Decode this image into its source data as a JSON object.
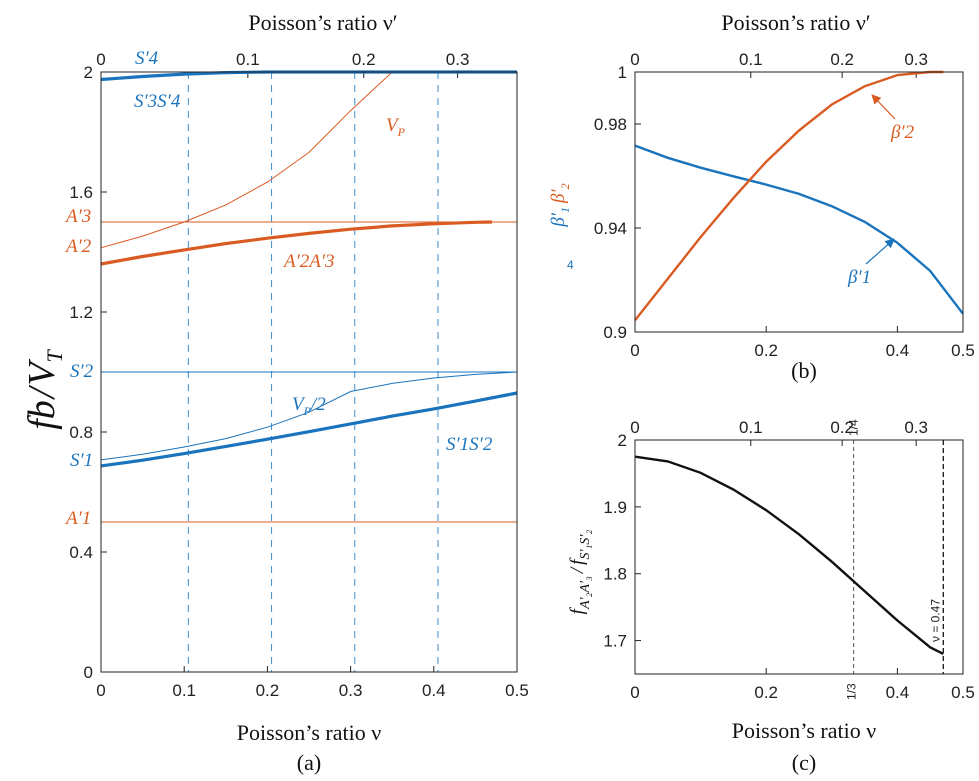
{
  "colors": {
    "blue": "#1a73bd",
    "orange": "#d95b22",
    "black": "#111111",
    "dash_blue": "#3b8fd1"
  },
  "chart_data": [
    {
      "type": "line",
      "id": "a",
      "panel_label": "(a)",
      "xlabel": "Poisson’s ratio ν",
      "top_xlabel": "Poisson’s ratio ν′",
      "ylabel_main": "fb",
      "ylabel_den": "V",
      "ylabel_sub": "T",
      "xlim": [
        0,
        0.5
      ],
      "ylim": [
        0,
        2
      ],
      "xticks": [
        "0",
        "0.1",
        "0.2",
        "0.3",
        "0.4",
        "0.5"
      ],
      "yticks": [
        "0",
        "0.4",
        "0.8",
        "1.2",
        "1.6",
        "2"
      ],
      "top_ticks": [
        "0",
        "0.1",
        "0.2",
        "0.3"
      ],
      "top_tick_nu": [
        0,
        0.1765,
        0.3158,
        0.4286
      ],
      "dashed_x": [
        0.105,
        0.205,
        0.305,
        0.405
      ],
      "series": [
        {
          "name": "V_P",
          "color": "orange",
          "width": "thin",
          "x": [
            0,
            0.05,
            0.1,
            0.15,
            0.2,
            0.25,
            0.3,
            0.35,
            0.4,
            0.45,
            0.5
          ],
          "y": [
            1.414,
            1.453,
            1.5,
            1.557,
            1.633,
            1.732,
            1.871,
            2.0,
            2.0,
            2.0,
            2.0
          ]
        },
        {
          "name": "A′2A′3",
          "color": "orange",
          "width": "thick",
          "x": [
            0,
            0.05,
            0.1,
            0.15,
            0.2,
            0.25,
            0.3,
            0.35,
            0.4,
            0.45,
            0.47
          ],
          "y": [
            1.36,
            1.385,
            1.407,
            1.428,
            1.446,
            1.462,
            1.476,
            1.487,
            1.494,
            1.499,
            1.5
          ]
        },
        {
          "name": "A′3",
          "color": "orange",
          "width": "thin",
          "x": [
            0,
            0.5
          ],
          "y": [
            1.5,
            1.5
          ]
        },
        {
          "name": "A′1",
          "color": "orange",
          "width": "thin",
          "x": [
            0,
            0.5
          ],
          "y": [
            0.5,
            0.5
          ]
        },
        {
          "name": "S′2",
          "color": "blue",
          "width": "thin",
          "x": [
            0,
            0.5
          ],
          "y": [
            1.0,
            1.0
          ]
        },
        {
          "name": "V_P/2",
          "color": "blue",
          "width": "thin",
          "x": [
            0,
            0.05,
            0.1,
            0.15,
            0.2,
            0.25,
            0.3,
            0.35,
            0.4,
            0.45,
            0.5
          ],
          "y": [
            0.707,
            0.726,
            0.75,
            0.778,
            0.816,
            0.866,
            0.935,
            0.962,
            0.98,
            0.992,
            1.0
          ]
        },
        {
          "name": "S′1S′2",
          "color": "blue",
          "width": "thick",
          "x": [
            0,
            0.05,
            0.1,
            0.15,
            0.2,
            0.25,
            0.3,
            0.35,
            0.4,
            0.45,
            0.5
          ],
          "y": [
            0.687,
            0.706,
            0.728,
            0.752,
            0.776,
            0.801,
            0.827,
            0.853,
            0.877,
            0.903,
            0.93
          ]
        },
        {
          "name": "S′3S′4",
          "color": "blue",
          "width": "thick",
          "x": [
            0,
            0.05,
            0.1,
            0.15,
            0.2,
            0.3,
            0.4,
            0.5
          ],
          "y": [
            1.975,
            1.985,
            1.993,
            1.998,
            2.0,
            2.0,
            2.0,
            2.0
          ]
        },
        {
          "name": "zero",
          "color": "blue",
          "width": "thin",
          "x": [
            0,
            0.5
          ],
          "y": [
            0,
            0
          ]
        }
      ],
      "labels": {
        "VP": "V",
        "VP_sub": "P",
        "A2A3": "A′2A′3",
        "A3": "A′3",
        "A2": "A′2",
        "A1": "A′1",
        "S2": "S′2",
        "S1": "S′1",
        "VP2": "V",
        "VP2_sub": "P",
        "VP2_tail": "/2",
        "S1S2": "S′1S′2",
        "S3S4": "S′3S′4",
        "S4": "S′4"
      }
    },
    {
      "type": "line",
      "id": "b",
      "panel_label": "(b)",
      "top_xlabel": "Poisson’s ratio ν′",
      "xlim": [
        0,
        0.5
      ],
      "ylim": [
        0.9,
        1.0
      ],
      "xticks": [
        "0",
        "0.2",
        "0.4",
        "0.5"
      ],
      "yticks": [
        "0.9",
        "0.94",
        "0.98",
        "1"
      ],
      "top_ticks": [
        "0",
        "0.1",
        "0.2",
        "0.3"
      ],
      "top_tick_nu": [
        0,
        0.1765,
        0.3158,
        0.4286
      ],
      "ylabel": "β′1 β′2",
      "ylabel_stray": "4",
      "series": [
        {
          "name": "β′1",
          "color": "blue",
          "x": [
            0,
            0.05,
            0.1,
            0.15,
            0.2,
            0.25,
            0.3,
            0.35,
            0.4,
            0.45,
            0.5
          ],
          "y": [
            0.9717,
            0.967,
            0.9632,
            0.9599,
            0.9567,
            0.9531,
            0.9484,
            0.9424,
            0.9343,
            0.9235,
            0.907
          ]
        },
        {
          "name": "β′2",
          "color": "orange",
          "x": [
            0,
            0.05,
            0.1,
            0.15,
            0.2,
            0.25,
            0.3,
            0.35,
            0.4,
            0.45,
            0.47
          ],
          "y": [
            0.9045,
            0.9205,
            0.9365,
            0.9515,
            0.9655,
            0.9775,
            0.9875,
            0.9945,
            0.9988,
            1.0,
            1.0
          ]
        }
      ],
      "labels": {
        "b1": "β′1",
        "b2": "β′2"
      }
    },
    {
      "type": "line",
      "id": "c",
      "panel_label": "(c)",
      "xlabel": "Poisson’s ratio ν",
      "xlim": [
        0,
        0.5
      ],
      "ylim": [
        1.65,
        2.0
      ],
      "xticks": [
        "0",
        "0.2",
        "0.4",
        "0.5"
      ],
      "yticks": [
        "1.7",
        "1.8",
        "1.9",
        "2"
      ],
      "top_ticks": [
        "0",
        "0.1",
        "0.2",
        "0.3"
      ],
      "top_tick_nu": [
        0,
        0.1765,
        0.3158,
        0.4286
      ],
      "ylabel": "f A′2A′3 / f S′1S′2",
      "vlines": [
        {
          "x": 0.3333,
          "top_label": "1/4",
          "bottom_label": "1/3",
          "style": "thin"
        },
        {
          "x": 0.47,
          "label": "ν = 0.47",
          "style": "thick"
        }
      ],
      "series": [
        {
          "name": "ratio",
          "color": "black",
          "x": [
            0,
            0.05,
            0.1,
            0.15,
            0.2,
            0.25,
            0.3,
            0.35,
            0.4,
            0.45,
            0.47
          ],
          "y": [
            1.975,
            1.968,
            1.951,
            1.926,
            1.895,
            1.859,
            1.818,
            1.774,
            1.73,
            1.69,
            1.68
          ]
        }
      ]
    }
  ]
}
